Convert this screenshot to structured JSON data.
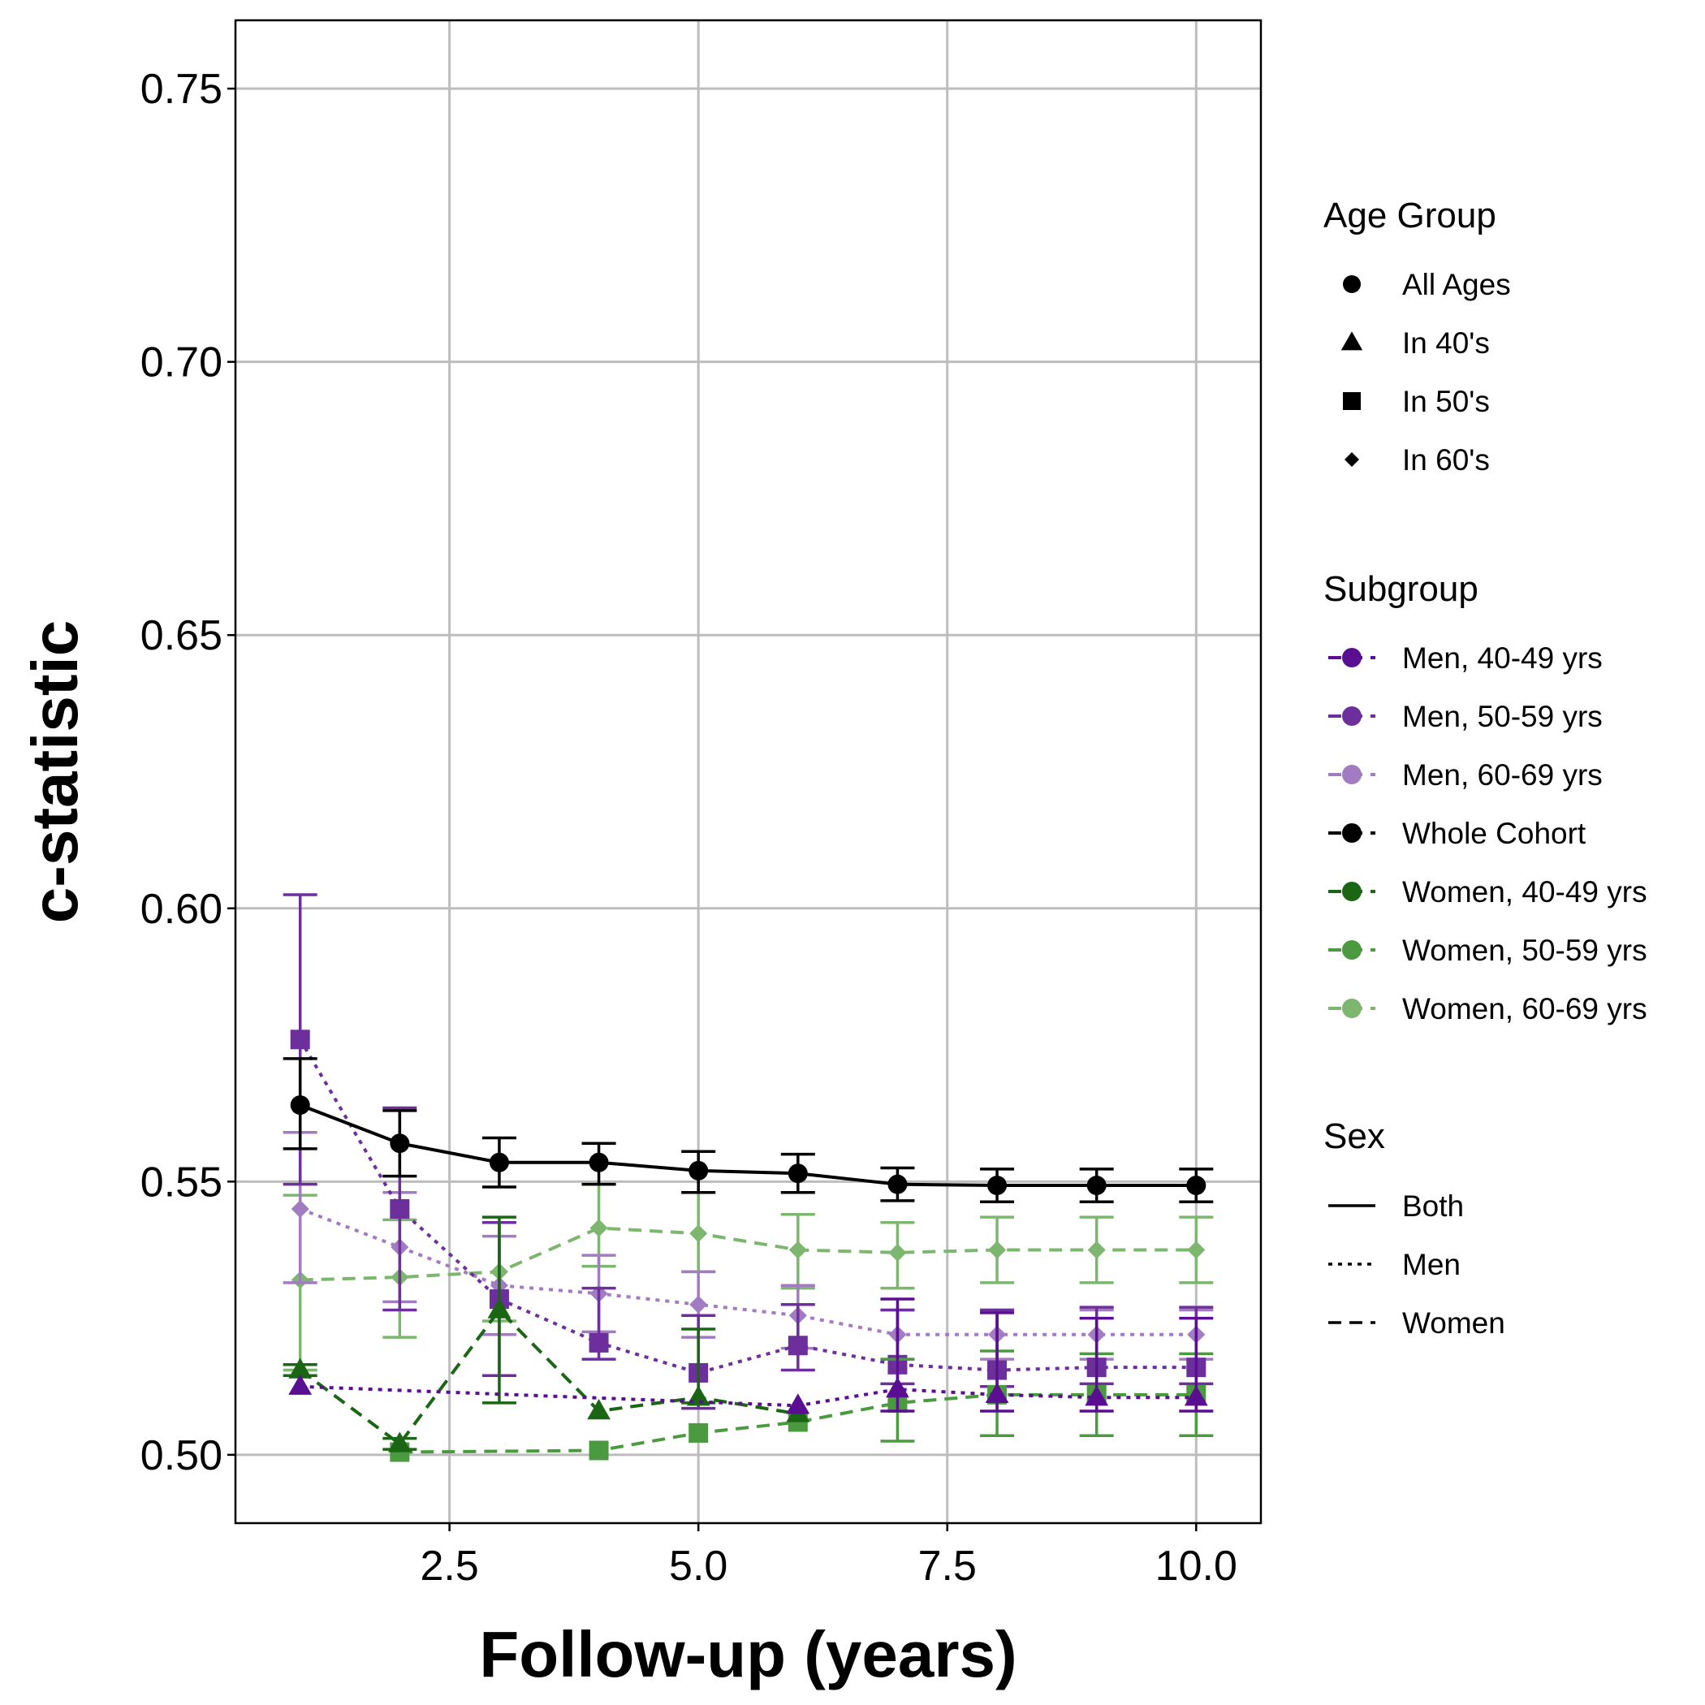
{
  "chart_data": {
    "type": "line",
    "xlabel": "Follow-up (years)",
    "ylabel": "c-statistic",
    "xlim": [
      0.35,
      10.65
    ],
    "ylim": [
      0.4875,
      0.7625
    ],
    "x_ticks": [
      2.5,
      5.0,
      7.5,
      10.0
    ],
    "x_tick_labels": [
      "2.5",
      "5.0",
      "7.5",
      "10.0"
    ],
    "y_ticks": [
      0.5,
      0.55,
      0.6,
      0.65,
      0.7,
      0.75
    ],
    "y_tick_labels": [
      "0.50",
      "0.55",
      "0.60",
      "0.65",
      "0.70",
      "0.75"
    ],
    "grid": true,
    "legend_position": "right",
    "x": [
      1,
      2,
      3,
      4,
      5,
      6,
      7,
      8,
      9,
      10
    ],
    "series": [
      {
        "name": "Whole Cohort",
        "shape": "circle",
        "sex": "Both",
        "color": "#000000",
        "y": [
          0.564,
          0.557,
          0.5535,
          0.5535,
          0.552,
          0.5515,
          0.5495,
          0.5493,
          0.5493,
          0.5493
        ],
        "lower": [
          0.556,
          0.551,
          0.549,
          0.5495,
          0.548,
          0.548,
          0.5465,
          0.5463,
          0.5463,
          0.5463
        ],
        "upper": [
          0.5725,
          0.563,
          0.558,
          0.557,
          0.5555,
          0.555,
          0.5525,
          0.5523,
          0.5523,
          0.5523
        ]
      },
      {
        "name": "Men, 40-49 yrs",
        "shape": "triangle",
        "sex": "Men",
        "color": "#5a0e91",
        "y": [
          0.5125,
          null,
          null,
          null,
          null,
          0.509,
          0.512,
          0.511,
          0.5105,
          0.5105
        ],
        "lower": [
          0.5125,
          null,
          null,
          null,
          null,
          0.5085,
          0.508,
          0.508,
          0.508,
          0.508
        ],
        "upper": [
          0.5125,
          null,
          null,
          null,
          null,
          0.5095,
          0.5285,
          0.526,
          0.525,
          0.525
        ]
      },
      {
        "name": "Men, 50-59 yrs",
        "shape": "square",
        "sex": "Men",
        "color": "#6d2f9c",
        "y": [
          0.576,
          0.545,
          0.5285,
          0.5205,
          0.515,
          0.52,
          0.5165,
          0.5155,
          0.516,
          0.516
        ],
        "lower": [
          0.5495,
          0.5265,
          0.5145,
          0.5175,
          0.5085,
          0.5155,
          0.513,
          0.5125,
          0.513,
          0.513
        ],
        "upper": [
          0.6025,
          0.5635,
          0.5425,
          0.5305,
          0.5255,
          0.5275,
          0.5265,
          0.5265,
          0.527,
          0.527
        ]
      },
      {
        "name": "Men, 60-69 yrs",
        "shape": "diamond",
        "sex": "Men",
        "color": "#a27cc0",
        "y": [
          0.545,
          0.538,
          0.531,
          0.5295,
          0.5275,
          0.5255,
          0.522,
          0.522,
          0.522,
          0.522
        ],
        "lower": [
          0.5315,
          0.528,
          0.522,
          0.5225,
          0.5215,
          0.5195,
          0.5175,
          0.5175,
          0.5175,
          0.5175
        ],
        "upper": [
          0.559,
          0.548,
          0.54,
          0.5365,
          0.5335,
          0.531,
          0.5265,
          0.5265,
          0.5265,
          0.5265
        ]
      },
      {
        "name": "Women, 40-49 yrs",
        "shape": "triangle",
        "sex": "Women",
        "color": "#1a6614",
        "y": [
          0.5155,
          0.502,
          0.5265,
          0.508,
          0.5105,
          0.5075,
          null,
          null,
          null,
          null
        ],
        "lower": [
          0.5145,
          0.501,
          0.5095,
          0.5075,
          0.5095,
          0.507,
          null,
          null,
          null,
          null
        ],
        "upper": [
          0.5165,
          0.503,
          0.5435,
          0.5085,
          0.523,
          0.508,
          null,
          null,
          null,
          null
        ]
      },
      {
        "name": "Women, 50-59 yrs",
        "shape": "square",
        "sex": "Women",
        "color": "#4b9a40",
        "y": [
          null,
          0.5005,
          null,
          0.5008,
          0.504,
          0.506,
          0.5095,
          0.511,
          0.511,
          0.511
        ],
        "lower": [
          null,
          0.5005,
          null,
          0.5008,
          0.504,
          0.506,
          0.5025,
          0.5035,
          0.5035,
          0.5035
        ],
        "upper": [
          null,
          0.5005,
          null,
          0.5008,
          0.504,
          0.506,
          0.5175,
          0.519,
          0.5185,
          0.5185
        ]
      },
      {
        "name": "Women, 60-69 yrs",
        "shape": "diamond",
        "sex": "Women",
        "color": "#7db66e",
        "y": [
          0.532,
          0.5325,
          0.5335,
          0.5415,
          0.5405,
          0.5375,
          0.537,
          0.5375,
          0.5375,
          0.5375
        ],
        "lower": [
          0.5155,
          0.5215,
          0.5245,
          0.5345,
          0.5335,
          0.5305,
          0.5305,
          0.5315,
          0.5315,
          0.5315
        ],
        "upper": [
          0.5475,
          0.543,
          0.5425,
          0.5495,
          0.548,
          0.544,
          0.5425,
          0.5435,
          0.5435,
          0.5435
        ]
      }
    ],
    "legends": [
      {
        "title": "Age Group",
        "type": "shape",
        "entries": [
          {
            "label": "All Ages",
            "shape": "circle"
          },
          {
            "label": "In 40's",
            "shape": "triangle"
          },
          {
            "label": "In 50's",
            "shape": "square"
          },
          {
            "label": "In 60's",
            "shape": "diamond"
          }
        ]
      },
      {
        "title": "Subgroup",
        "type": "color",
        "entries": [
          {
            "label": "Men, 40-49 yrs",
            "color": "#5a0e91",
            "dash": "dashed"
          },
          {
            "label": "Men, 50-59 yrs",
            "color": "#6d2f9c",
            "dash": "dashed"
          },
          {
            "label": "Men, 60-69 yrs",
            "color": "#a27cc0",
            "dash": "dashed"
          },
          {
            "label": "Whole Cohort",
            "color": "#000000",
            "dash": "dashed"
          },
          {
            "label": "Women, 40-49 yrs",
            "color": "#1a6614",
            "dash": "dashed"
          },
          {
            "label": "Women, 50-59 yrs",
            "color": "#4b9a40",
            "dash": "dashed"
          },
          {
            "label": "Women, 60-69 yrs",
            "color": "#7db66e",
            "dash": "dashed"
          }
        ]
      },
      {
        "title": "Sex",
        "type": "linetype",
        "entries": [
          {
            "label": "Both",
            "dash": "solid"
          },
          {
            "label": "Men",
            "dash": "dotted"
          },
          {
            "label": "Women",
            "dash": "dashed"
          }
        ]
      }
    ]
  }
}
